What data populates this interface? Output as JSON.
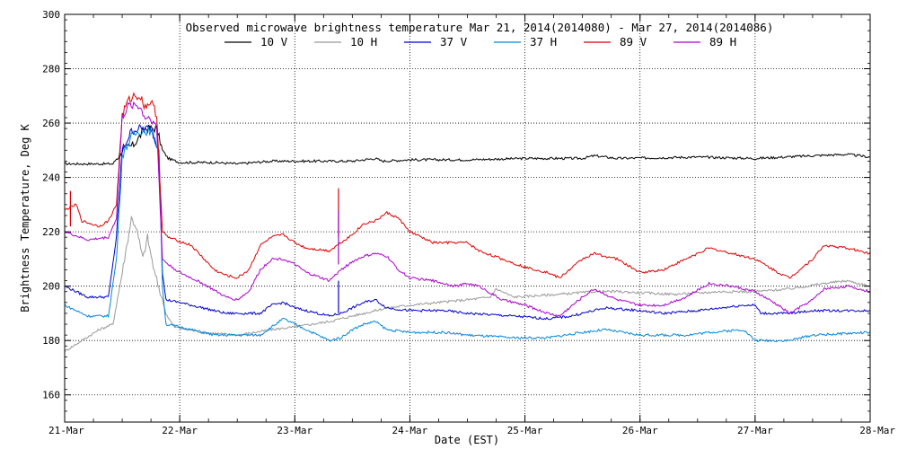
{
  "chart_data": {
    "type": "line",
    "title": "Observed microwave brightness temperature Mar 21, 2014(2014080) - Mar 27, 2014(2014086)",
    "xlabel": "Date (EST)",
    "ylabel": "Brightness Temperature, Deg K",
    "xlim": [
      0,
      7
    ],
    "ylim": [
      150,
      300
    ],
    "yticks": [
      160,
      180,
      200,
      220,
      240,
      260,
      280,
      300
    ],
    "xticks": [
      {
        "x": 0,
        "label": "21-Mar"
      },
      {
        "x": 1,
        "label": "22-Mar"
      },
      {
        "x": 2,
        "label": "23-Mar"
      },
      {
        "x": 3,
        "label": "24-Mar"
      },
      {
        "x": 4,
        "label": "25-Mar"
      },
      {
        "x": 5,
        "label": "26-Mar"
      },
      {
        "x": 6,
        "label": "27-Mar"
      },
      {
        "x": 7,
        "label": "28-Mar"
      }
    ],
    "grid": true,
    "legend_position": "top-center",
    "series": [
      {
        "name": "10 V",
        "color": "#000000",
        "points": [
          [
            0,
            245
          ],
          [
            0.42,
            245
          ],
          [
            0.5,
            250
          ],
          [
            0.6,
            252
          ],
          [
            0.7,
            258
          ],
          [
            0.8,
            258
          ],
          [
            0.85,
            250
          ],
          [
            0.9,
            247
          ],
          [
            1.0,
            245.5
          ],
          [
            1.3,
            245.5
          ],
          [
            1.5,
            245
          ],
          [
            1.8,
            246
          ],
          [
            2.2,
            246
          ],
          [
            2.5,
            246
          ],
          [
            2.7,
            247
          ],
          [
            2.76,
            246
          ],
          [
            3.0,
            246.5
          ],
          [
            3.5,
            246.5
          ],
          [
            4.0,
            247
          ],
          [
            4.5,
            247
          ],
          [
            4.6,
            248
          ],
          [
            4.8,
            247
          ],
          [
            5.5,
            247.5
          ],
          [
            6.0,
            247
          ],
          [
            6.5,
            248
          ],
          [
            6.8,
            248.5
          ],
          [
            7.0,
            247.5
          ]
        ]
      },
      {
        "name": "10 H",
        "color": "#999999",
        "points": [
          [
            0,
            176
          ],
          [
            0.3,
            184
          ],
          [
            0.42,
            186
          ],
          [
            0.5,
            205
          ],
          [
            0.58,
            225
          ],
          [
            0.62,
            222
          ],
          [
            0.68,
            210
          ],
          [
            0.72,
            218
          ],
          [
            0.78,
            205
          ],
          [
            0.85,
            195
          ],
          [
            0.88,
            190
          ],
          [
            0.95,
            185
          ],
          [
            1.2,
            183
          ],
          [
            1.5,
            182
          ],
          [
            1.8,
            184
          ],
          [
            2.0,
            185
          ],
          [
            2.3,
            187
          ],
          [
            2.6,
            190
          ],
          [
            2.8,
            192
          ],
          [
            3.0,
            193
          ],
          [
            3.5,
            195
          ],
          [
            3.7,
            196
          ],
          [
            3.75,
            199
          ],
          [
            3.9,
            196
          ],
          [
            4.3,
            197
          ],
          [
            4.6,
            198
          ],
          [
            4.8,
            198
          ],
          [
            5.3,
            197
          ],
          [
            5.7,
            198
          ],
          [
            6.0,
            198
          ],
          [
            6.3,
            199
          ],
          [
            6.6,
            201
          ],
          [
            6.8,
            202
          ],
          [
            7.0,
            200
          ]
        ]
      },
      {
        "name": "37 V",
        "color": "#0000cc",
        "points": [
          [
            0,
            200
          ],
          [
            0.2,
            196
          ],
          [
            0.38,
            196
          ],
          [
            0.45,
            218
          ],
          [
            0.5,
            250
          ],
          [
            0.58,
            257
          ],
          [
            0.65,
            258
          ],
          [
            0.75,
            258
          ],
          [
            0.82,
            250
          ],
          [
            0.85,
            205
          ],
          [
            0.88,
            195
          ],
          [
            1.0,
            194
          ],
          [
            1.4,
            190
          ],
          [
            1.7,
            190
          ],
          [
            1.8,
            193
          ],
          [
            1.9,
            194
          ],
          [
            2.0,
            192
          ],
          [
            2.3,
            189
          ],
          [
            2.4,
            190
          ],
          [
            2.5,
            192
          ],
          [
            2.6,
            194
          ],
          [
            2.7,
            195
          ],
          [
            2.8,
            192
          ],
          [
            3.0,
            191
          ],
          [
            3.3,
            191
          ],
          [
            3.5,
            190
          ],
          [
            3.9,
            189
          ],
          [
            4.2,
            188
          ],
          [
            4.4,
            189
          ],
          [
            4.7,
            192
          ],
          [
            5.0,
            191
          ],
          [
            5.2,
            190
          ],
          [
            5.5,
            191
          ],
          [
            5.9,
            193
          ],
          [
            6.0,
            193
          ],
          [
            6.05,
            190
          ],
          [
            6.3,
            190
          ],
          [
            6.5,
            191
          ],
          [
            7.0,
            191
          ]
        ]
      },
      {
        "name": "37 H",
        "color": "#0088dd",
        "points": [
          [
            0,
            193
          ],
          [
            0.2,
            189
          ],
          [
            0.38,
            189
          ],
          [
            0.45,
            210
          ],
          [
            0.5,
            248
          ],
          [
            0.58,
            255
          ],
          [
            0.65,
            257
          ],
          [
            0.75,
            257
          ],
          [
            0.82,
            250
          ],
          [
            0.85,
            200
          ],
          [
            0.88,
            186
          ],
          [
            1.0,
            185
          ],
          [
            1.3,
            182
          ],
          [
            1.7,
            182
          ],
          [
            1.8,
            185
          ],
          [
            1.9,
            188
          ],
          [
            2.0,
            186
          ],
          [
            2.3,
            180
          ],
          [
            2.4,
            181
          ],
          [
            2.5,
            184
          ],
          [
            2.6,
            186
          ],
          [
            2.7,
            187
          ],
          [
            2.8,
            184
          ],
          [
            3.0,
            183
          ],
          [
            3.3,
            183
          ],
          [
            3.5,
            182
          ],
          [
            3.9,
            181
          ],
          [
            4.2,
            181
          ],
          [
            4.5,
            183
          ],
          [
            4.7,
            184
          ],
          [
            5.0,
            182
          ],
          [
            5.4,
            182
          ],
          [
            5.6,
            183
          ],
          [
            5.9,
            184
          ],
          [
            6.0,
            180
          ],
          [
            6.3,
            180
          ],
          [
            6.5,
            182
          ],
          [
            7.0,
            183
          ]
        ]
      },
      {
        "name": "89 V",
        "color": "#dd0000",
        "points": [
          [
            0,
            228
          ],
          [
            0.1,
            230
          ],
          [
            0.15,
            224
          ],
          [
            0.3,
            222
          ],
          [
            0.38,
            224
          ],
          [
            0.45,
            230
          ],
          [
            0.5,
            263
          ],
          [
            0.55,
            268
          ],
          [
            0.6,
            270
          ],
          [
            0.65,
            270
          ],
          [
            0.7,
            266
          ],
          [
            0.75,
            268
          ],
          [
            0.8,
            263
          ],
          [
            0.85,
            220
          ],
          [
            0.9,
            218
          ],
          [
            1.1,
            215
          ],
          [
            1.3,
            206
          ],
          [
            1.4,
            204
          ],
          [
            1.5,
            203
          ],
          [
            1.6,
            206
          ],
          [
            1.7,
            215
          ],
          [
            1.8,
            218
          ],
          [
            1.9,
            219
          ],
          [
            2.0,
            216
          ],
          [
            2.1,
            214
          ],
          [
            2.3,
            213
          ],
          [
            2.4,
            216
          ],
          [
            2.5,
            219
          ],
          [
            2.6,
            223
          ],
          [
            2.7,
            224
          ],
          [
            2.8,
            227
          ],
          [
            2.9,
            225
          ],
          [
            3.0,
            220
          ],
          [
            3.2,
            216
          ],
          [
            3.4,
            216
          ],
          [
            3.5,
            216
          ],
          [
            3.6,
            213
          ],
          [
            3.8,
            210
          ],
          [
            4.0,
            207
          ],
          [
            4.2,
            205
          ],
          [
            4.3,
            203
          ],
          [
            4.5,
            210
          ],
          [
            4.6,
            212
          ],
          [
            4.8,
            210
          ],
          [
            5.0,
            205
          ],
          [
            5.2,
            206
          ],
          [
            5.4,
            210
          ],
          [
            5.6,
            214
          ],
          [
            5.8,
            212
          ],
          [
            6.0,
            210
          ],
          [
            6.2,
            205
          ],
          [
            6.3,
            203
          ],
          [
            6.5,
            210
          ],
          [
            6.6,
            215
          ],
          [
            6.8,
            214
          ],
          [
            7.0,
            212
          ]
        ]
      },
      {
        "name": "89 H",
        "color": "#aa00cc",
        "points": [
          [
            0,
            220
          ],
          [
            0.2,
            217
          ],
          [
            0.38,
            218
          ],
          [
            0.45,
            225
          ],
          [
            0.5,
            262
          ],
          [
            0.55,
            266
          ],
          [
            0.6,
            267
          ],
          [
            0.65,
            266
          ],
          [
            0.7,
            262
          ],
          [
            0.75,
            262
          ],
          [
            0.8,
            258
          ],
          [
            0.85,
            210
          ],
          [
            0.9,
            208
          ],
          [
            1.0,
            205
          ],
          [
            1.2,
            201
          ],
          [
            1.4,
            196
          ],
          [
            1.5,
            195
          ],
          [
            1.6,
            198
          ],
          [
            1.7,
            206
          ],
          [
            1.8,
            210
          ],
          [
            1.9,
            210
          ],
          [
            2.0,
            208
          ],
          [
            2.1,
            205
          ],
          [
            2.3,
            202
          ],
          [
            2.4,
            206
          ],
          [
            2.5,
            209
          ],
          [
            2.6,
            211
          ],
          [
            2.7,
            212
          ],
          [
            2.8,
            211
          ],
          [
            2.9,
            206
          ],
          [
            3.0,
            203
          ],
          [
            3.2,
            202
          ],
          [
            3.4,
            200
          ],
          [
            3.5,
            201
          ],
          [
            3.6,
            200
          ],
          [
            3.8,
            195
          ],
          [
            4.0,
            193
          ],
          [
            4.2,
            190
          ],
          [
            4.3,
            189
          ],
          [
            4.5,
            196
          ],
          [
            4.6,
            199
          ],
          [
            4.8,
            195
          ],
          [
            5.0,
            193
          ],
          [
            5.2,
            193
          ],
          [
            5.4,
            196
          ],
          [
            5.6,
            201
          ],
          [
            5.8,
            200
          ],
          [
            6.0,
            198
          ],
          [
            6.2,
            193
          ],
          [
            6.3,
            190
          ],
          [
            6.5,
            195
          ],
          [
            6.6,
            199
          ],
          [
            6.8,
            200
          ],
          [
            7.0,
            198
          ]
        ]
      }
    ],
    "spikes": [
      {
        "series": "89 V",
        "x": 2.38,
        "from": 218,
        "to": 236
      },
      {
        "series": "89 H",
        "x": 2.38,
        "from": 208,
        "to": 228
      },
      {
        "series": "37 V",
        "x": 2.38,
        "from": 190,
        "to": 202
      },
      {
        "series": "89 V",
        "x": 0.05,
        "from": 222,
        "to": 235
      }
    ]
  }
}
